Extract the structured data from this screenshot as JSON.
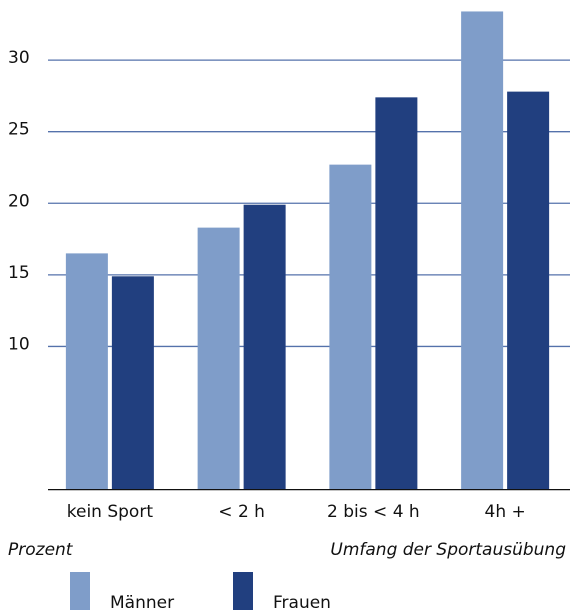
{
  "chart_data": {
    "type": "bar",
    "y_label": "Prozent",
    "x_label": "Umfang der Sportausübung",
    "categories": [
      "kein Sport",
      "< 2 h",
      "2 bis < 4 h",
      "4h +"
    ],
    "series": [
      {
        "name": "Männer",
        "color": "#7f9dc9",
        "values": [
          16.5,
          18.3,
          22.7,
          33.4
        ]
      },
      {
        "name": "Frauen",
        "color": "#213f7f",
        "values": [
          14.9,
          19.9,
          27.4,
          27.8
        ]
      }
    ],
    "ylim": [
      0,
      34.2
    ],
    "yticks": [
      10,
      15,
      20,
      25,
      30
    ],
    "grid": true,
    "grid_color": "#5572ab"
  }
}
